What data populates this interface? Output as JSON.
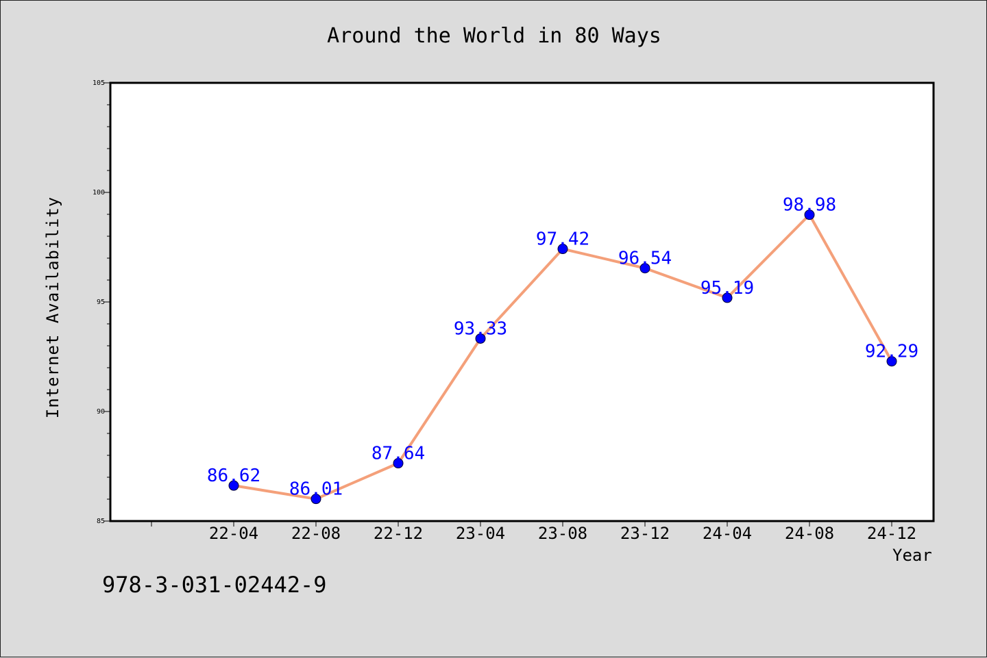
{
  "footer_text": "978-3-031-02442-9",
  "chart_data": {
    "type": "line",
    "title": "Around the World in 80 Ways",
    "xlabel": "Year",
    "ylabel": "Internet Availability",
    "categories": [
      "22-04",
      "22-08",
      "22-12",
      "23-04",
      "23-08",
      "23-12",
      "24-04",
      "24-08",
      "24-12"
    ],
    "series": [
      {
        "values": [
          86.62,
          86.01,
          87.64,
          93.33,
          97.42,
          96.54,
          95.19,
          98.98,
          92.29
        ],
        "line_color": "#f4a07a",
        "marker_color": "#0000ff",
        "label_color": "#0000ff"
      }
    ],
    "ylim": [
      85,
      105
    ],
    "yticks": [
      85,
      90,
      95,
      100,
      105
    ],
    "grid": false,
    "legend": "none",
    "data_labels": true
  }
}
